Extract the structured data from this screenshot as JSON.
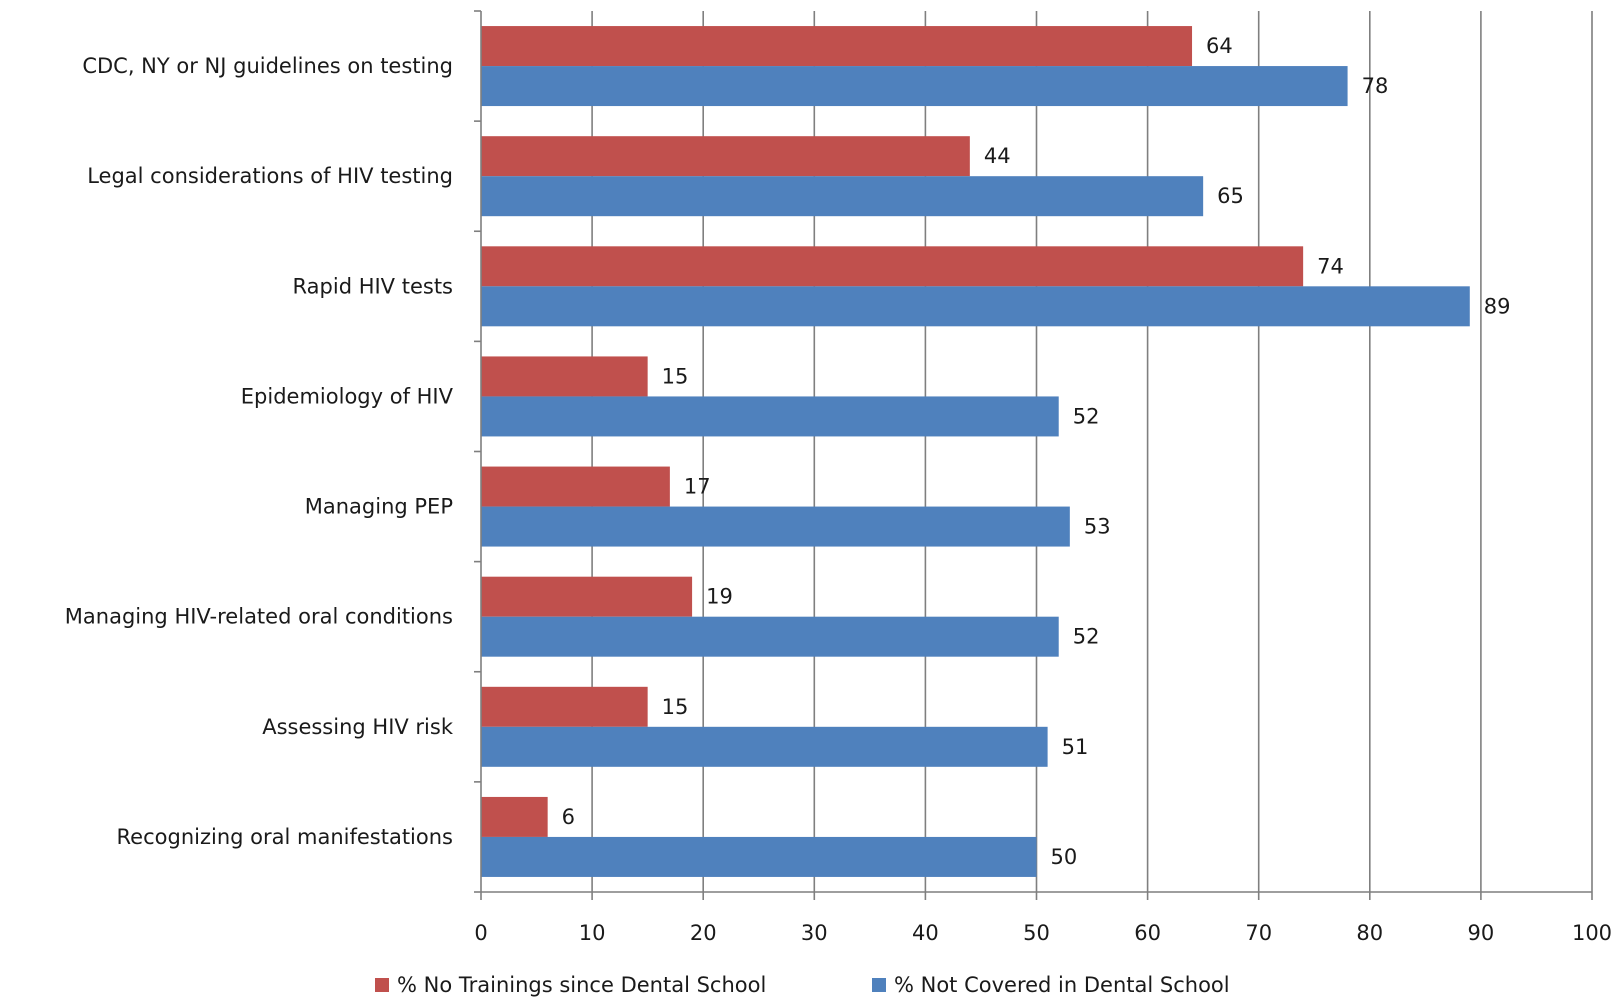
{
  "chart_data": {
    "type": "bar",
    "orientation": "horizontal",
    "categories": [
      "CDC, NY or NJ guidelines on testing",
      "Legal considerations of HIV testing",
      "Rapid HIV tests",
      "Epidemiology of HIV",
      "Managing PEP",
      "Managing HIV-related oral conditions",
      "Assessing HIV risk",
      "Recognizing oral manifestations"
    ],
    "series": [
      {
        "name": "% No Trainings since Dental School",
        "color": "#c0504d",
        "values": [
          64,
          44,
          74,
          15,
          17,
          19,
          15,
          6
        ]
      },
      {
        "name": "% Not Covered in Dental School",
        "color": "#4f81bd",
        "values": [
          78,
          65,
          89,
          52,
          53,
          52,
          51,
          50
        ]
      }
    ],
    "xlim": [
      0,
      100
    ],
    "xticks": [
      0,
      10,
      20,
      30,
      40,
      50,
      60,
      70,
      80,
      90,
      100
    ],
    "grid": "vertical",
    "legend": "bottom-center",
    "data_labels": true
  }
}
